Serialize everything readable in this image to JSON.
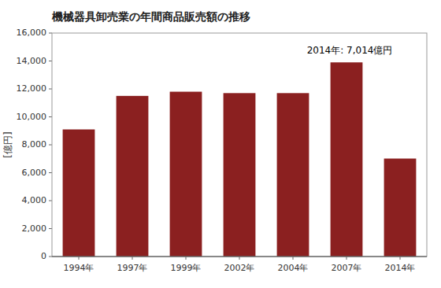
{
  "chart_data": {
    "type": "bar",
    "title": "機械器具卸売業の年間商品販売額の推移",
    "ylabel": "[億円]",
    "annotation": "2014年: 7,014億円",
    "categories": [
      "1994年",
      "1997年",
      "1999年",
      "2002年",
      "2004年",
      "2007年",
      "2014年"
    ],
    "values": [
      9100,
      11500,
      11800,
      11700,
      11700,
      13900,
      7014
    ],
    "color": "#8B2020",
    "ylim": [
      0,
      16000
    ],
    "yticks": [
      0,
      {
        "value": 2000,
        "label": "2,000"
      },
      {
        "value": 4000,
        "label": "4,000"
      },
      {
        "value": 6000,
        "label": "6,000"
      },
      {
        "value": 8000,
        "label": "8,000"
      },
      {
        "value": 10000,
        "label": "10,000"
      },
      {
        "value": 12000,
        "label": "12,000"
      },
      {
        "value": 14000,
        "label": "14,000"
      },
      {
        "value": 16000,
        "label": "16,000"
      }
    ],
    "grid": false
  }
}
